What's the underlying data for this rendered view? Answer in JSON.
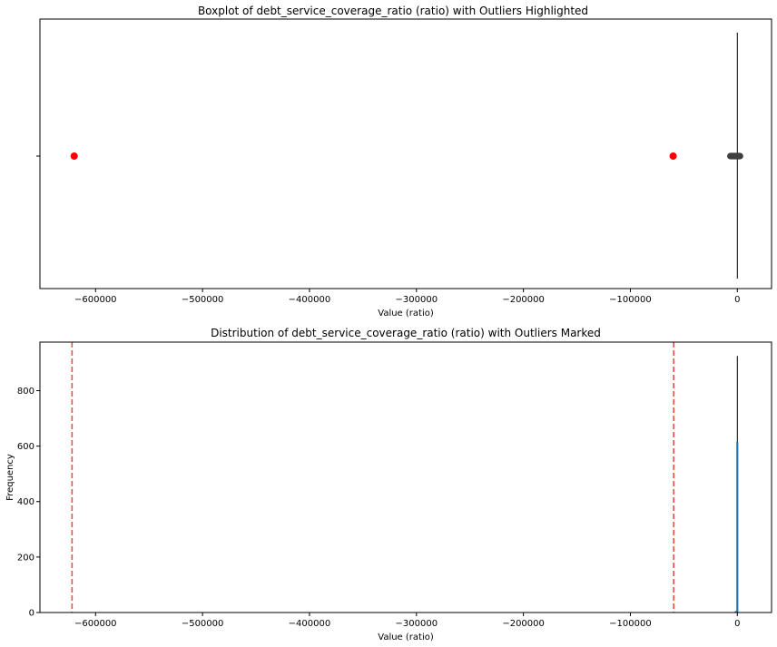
{
  "chart_data": [
    {
      "type": "boxplot",
      "title": "Boxplot of debt_service_coverage_ratio (ratio) with Outliers Highlighted",
      "xlabel": "Value (ratio)",
      "ylabel": "",
      "xlim": [
        -652000,
        32000
      ],
      "xticks": [
        -600000,
        -500000,
        -400000,
        -300000,
        -200000,
        -100000,
        0
      ],
      "xtick_labels": [
        "−600000",
        "−500000",
        "−400000",
        "−300000",
        "−200000",
        "−100000",
        "0"
      ],
      "box": {
        "whisker_line_at": 0
      },
      "cluster_outliers": [
        -6500,
        -6000,
        -5500,
        -5000,
        -4500,
        -4000,
        -3500,
        -3000,
        -2500,
        -2000,
        -1500,
        -1000,
        -500,
        500,
        1000,
        1500,
        2000,
        2500
      ],
      "highlighted_outliers": [
        -620000,
        -60000
      ],
      "colors": {
        "highlight": "#ff0000",
        "cluster": "#3f3f3f"
      },
      "grid": false
    },
    {
      "type": "histogram",
      "title": "Distribution of debt_service_coverage_ratio (ratio) with Outliers Marked",
      "xlabel": "Value (ratio)",
      "ylabel": "Frequency",
      "xlim": [
        -652000,
        32000
      ],
      "ylim": [
        0,
        975
      ],
      "xticks": [
        -600000,
        -500000,
        -400000,
        -300000,
        -200000,
        -100000,
        0
      ],
      "xtick_labels": [
        "−600000",
        "−500000",
        "−400000",
        "−300000",
        "−200000",
        "−100000",
        "0"
      ],
      "yticks": [
        0,
        200,
        400,
        600,
        800
      ],
      "bars": [
        {
          "x": 0,
          "value": 925,
          "color": "#000000"
        },
        {
          "x": 0,
          "value": 615,
          "color": "#1f77b4"
        },
        {
          "x": -1500,
          "value": 5,
          "color": "#1f77b4"
        }
      ],
      "threshold_lines": [
        -622000,
        -59500
      ],
      "colors": {
        "threshold": "#e8534a"
      },
      "grid": false
    }
  ]
}
